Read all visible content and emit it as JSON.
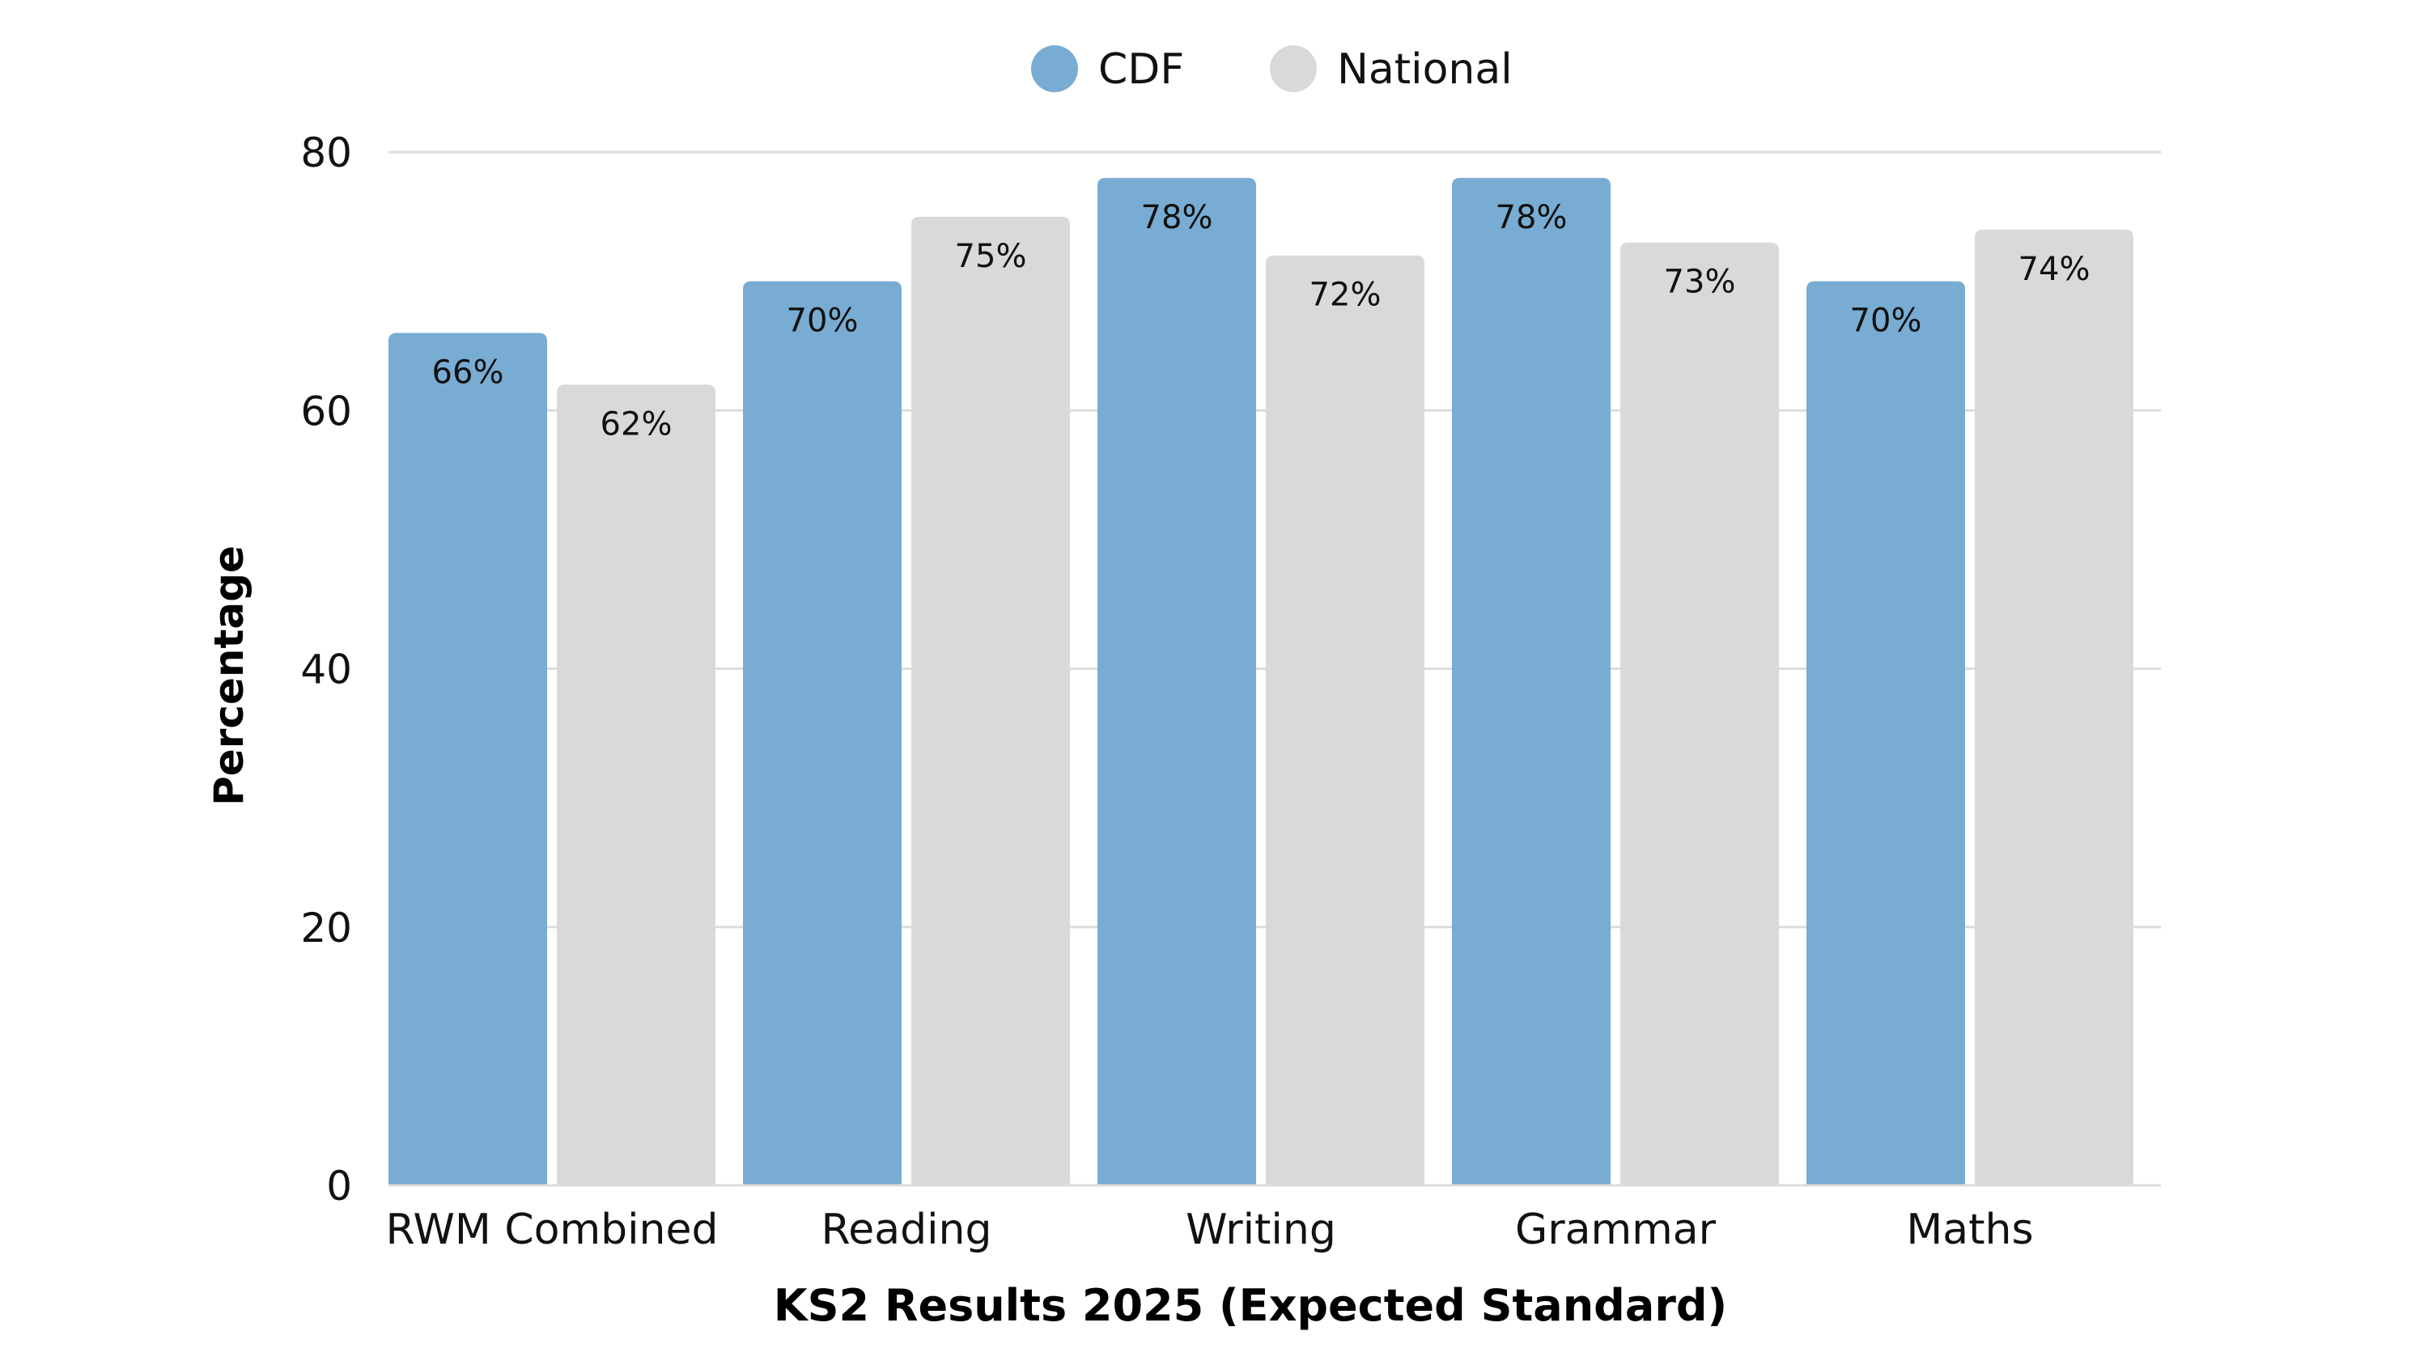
{
  "chart_data": {
    "type": "bar",
    "title": "",
    "xlabel": "KS2 Results 2025 (Expected Standard)",
    "ylabel": "Percentage",
    "ylim": [
      0,
      80
    ],
    "yticks": [
      0,
      20,
      40,
      60,
      80
    ],
    "grid": true,
    "legend_position": "top-center",
    "categories": [
      "RWM Combined",
      "Reading",
      "Writing",
      "Grammar",
      "Maths"
    ],
    "series": [
      {
        "name": "CDF",
        "color": "#78acd3",
        "values": [
          66,
          70,
          78,
          78,
          70
        ],
        "labels": [
          "66%",
          "70%",
          "78%",
          "78%",
          "70%"
        ]
      },
      {
        "name": "National",
        "color": "#d9d9d9",
        "values": [
          62,
          75,
          72,
          73,
          74
        ],
        "labels": [
          "62%",
          "75%",
          "72%",
          "73%",
          "74%"
        ]
      }
    ]
  }
}
